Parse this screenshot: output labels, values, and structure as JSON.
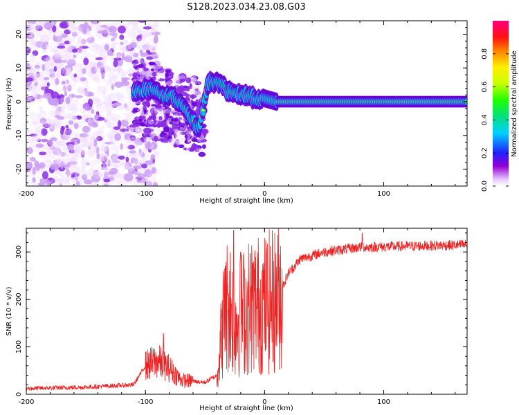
{
  "figure": {
    "title": "S128.2023.034.23.08.G03"
  },
  "chart_data": [
    {
      "type": "heatmap",
      "xlabel": "Height of straight line (km)",
      "ylabel": "Frequency (Hz)",
      "xlim": [
        -200,
        170
      ],
      "ylim": [
        -25,
        24
      ],
      "xticks": [
        -200,
        -100,
        0,
        100
      ],
      "yticks": [
        -20,
        -10,
        0,
        10,
        20
      ],
      "colorbar": {
        "label": "Normalized spectral amplitude",
        "range": [
          0,
          1
        ],
        "ticks": [
          0.0,
          0.2,
          0.4,
          0.6,
          0.8
        ]
      },
      "ridge": [
        {
          "x": -110,
          "f": 3
        },
        {
          "x": -95,
          "f": 4
        },
        {
          "x": -85,
          "f": 2
        },
        {
          "x": -75,
          "f": 1
        },
        {
          "x": -65,
          "f": -3
        },
        {
          "x": -55,
          "f": -8
        },
        {
          "x": -48,
          "f": 5
        },
        {
          "x": -40,
          "f": 6
        },
        {
          "x": -30,
          "f": 3
        },
        {
          "x": -20,
          "f": 2
        },
        {
          "x": -10,
          "f": 1
        },
        {
          "x": 0,
          "f": 1
        },
        {
          "x": 10,
          "f": 0
        },
        {
          "x": 170,
          "f": 0
        }
      ],
      "grid": false
    },
    {
      "type": "line",
      "xlabel": "Height of straight line (km)",
      "ylabel": "SNR (10 * v/v)",
      "xlim": [
        -200,
        170
      ],
      "ylim": [
        0,
        350
      ],
      "xticks": [
        -200,
        -100,
        0,
        100
      ],
      "yticks": [
        0,
        100,
        200,
        300
      ],
      "series": [
        {
          "color": "#ee2222",
          "envelope": [
            {
              "x": -200,
              "y": 12
            },
            {
              "x": -150,
              "y": 15
            },
            {
              "x": -110,
              "y": 20
            },
            {
              "x": -100,
              "y": 60
            },
            {
              "x": -90,
              "y": 70
            },
            {
              "x": -80,
              "y": 55
            },
            {
              "x": -70,
              "y": 30
            },
            {
              "x": -50,
              "y": 25
            },
            {
              "x": -40,
              "y": 40
            },
            {
              "x": -35,
              "y": 150
            },
            {
              "x": -30,
              "y": 200
            },
            {
              "x": -25,
              "y": 150
            },
            {
              "x": -20,
              "y": 170
            },
            {
              "x": -10,
              "y": 190
            },
            {
              "x": 0,
              "y": 190
            },
            {
              "x": 10,
              "y": 200
            },
            {
              "x": 20,
              "y": 255
            },
            {
              "x": 30,
              "y": 285
            },
            {
              "x": 50,
              "y": 300
            },
            {
              "x": 80,
              "y": 310
            },
            {
              "x": 120,
              "y": 312
            },
            {
              "x": 170,
              "y": 315
            }
          ],
          "spikes": [
            {
              "x": -85,
              "y": 128
            },
            {
              "x": -33,
              "y": 270
            },
            {
              "x": -26,
              "y": 345
            },
            {
              "x": -20,
              "y": 300
            },
            {
              "x": 82,
              "y": 340
            }
          ]
        }
      ],
      "grid": false
    }
  ]
}
